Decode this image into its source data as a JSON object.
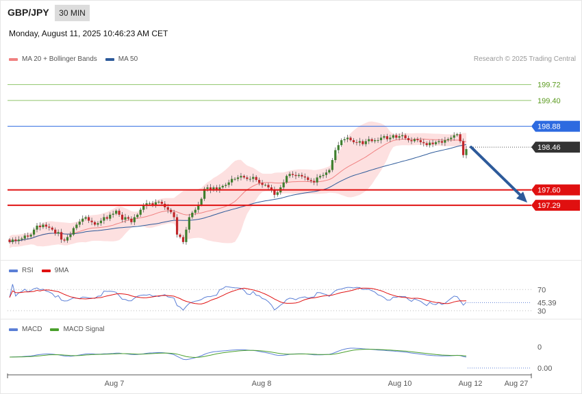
{
  "header": {
    "symbol": "GBP/JPY",
    "timeframe": "30 MIN",
    "datetime": "Monday, August 11, 2025 10:46:23 AM CET",
    "credit": "Research © 2025 Trading Central"
  },
  "legends": {
    "main": [
      {
        "label": "MA 20 + Bollinger Bands",
        "color": "#f08080"
      },
      {
        "label": "MA 50",
        "color": "#2d5a9a"
      }
    ],
    "rsi": [
      {
        "label": "RSI",
        "color": "#5b7fd6"
      },
      {
        "label": "9MA",
        "color": "#e01010"
      }
    ],
    "macd": [
      {
        "label": "MACD",
        "color": "#5b7fd6"
      },
      {
        "label": "MACD Signal",
        "color": "#4aa02c"
      }
    ]
  },
  "colors": {
    "up": "#3f7f2e",
    "down": "#c0262a",
    "band": "#fde0e0",
    "ma20": "#f08080",
    "ma50": "#2d5a9a",
    "resistance": "#8fc46a",
    "pivot": "#2d6ae0",
    "support": "#e01010",
    "current": "#333333"
  },
  "chart_data": [
    {
      "type": "candlestick",
      "title": "GBP/JPY 30 MIN",
      "ylim": [
        196.3,
        200.1
      ],
      "x_ticks": [
        "Aug 7",
        "Aug 8",
        "Aug 10",
        "Aug 12",
        "Aug 27"
      ],
      "levels": [
        {
          "value": 199.72,
          "label": "199.72",
          "kind": "resistance"
        },
        {
          "value": 199.4,
          "label": "199.40",
          "kind": "resistance"
        },
        {
          "value": 198.88,
          "label": "198.88",
          "kind": "pivot"
        },
        {
          "value": 198.46,
          "label": "198.46",
          "kind": "current"
        },
        {
          "value": 197.6,
          "label": "197.60",
          "kind": "support"
        },
        {
          "value": 197.29,
          "label": "197.29",
          "kind": "support"
        }
      ],
      "forecast": {
        "from": 198.46,
        "to": 197.29
      },
      "close": [
        196.55,
        196.6,
        196.57,
        196.6,
        196.62,
        196.68,
        196.66,
        196.7,
        196.8,
        196.88,
        196.85,
        196.9,
        196.86,
        196.84,
        196.8,
        196.72,
        196.75,
        196.6,
        196.58,
        196.65,
        196.7,
        196.83,
        196.9,
        196.96,
        197.02,
        197.05,
        196.98,
        196.95,
        196.9,
        196.93,
        196.98,
        197.05,
        197.02,
        197.1,
        197.12,
        197.18,
        197.1,
        197.0,
        197.05,
        197.02,
        196.95,
        197.05,
        197.1,
        197.2,
        197.28,
        197.33,
        197.33,
        197.3,
        197.35,
        197.36,
        197.32,
        197.25,
        197.2,
        197.15,
        197.05,
        196.7,
        196.65,
        196.55,
        196.8,
        197.05,
        197.14,
        197.2,
        197.3,
        197.42,
        197.62,
        197.65,
        197.6,
        197.65,
        197.6,
        197.65,
        197.68,
        197.7,
        197.75,
        197.82,
        197.82,
        197.85,
        197.88,
        197.85,
        197.82,
        197.82,
        197.86,
        197.8,
        197.74,
        197.7,
        197.7,
        197.65,
        197.6,
        197.5,
        197.55,
        197.65,
        197.75,
        197.88,
        197.92,
        197.9,
        197.88,
        197.9,
        197.87,
        197.85,
        197.8,
        197.78,
        197.75,
        197.85,
        197.88,
        197.9,
        197.95,
        198.0,
        198.2,
        198.4,
        198.5,
        198.6,
        198.62,
        198.65,
        198.6,
        198.56,
        198.55,
        198.58,
        198.52,
        198.58,
        198.62,
        198.58,
        198.6,
        198.6,
        198.65,
        198.68,
        198.62,
        198.65,
        198.7,
        198.65,
        198.68,
        198.7,
        198.64,
        198.6,
        198.58,
        198.62,
        198.6,
        198.56,
        198.54,
        198.5,
        198.55,
        198.52,
        198.56,
        198.58,
        198.55,
        198.6,
        198.62,
        198.65,
        198.7,
        198.72,
        198.58,
        198.3,
        198.42
      ],
      "open": [
        196.6,
        196.55,
        196.6,
        196.57,
        196.6,
        196.62,
        196.68,
        196.66,
        196.7,
        196.8,
        196.88,
        196.85,
        196.9,
        196.86,
        196.84,
        196.8,
        196.72,
        196.75,
        196.6,
        196.58,
        196.65,
        196.7,
        196.83,
        196.9,
        196.96,
        197.02,
        197.05,
        196.98,
        196.95,
        196.9,
        196.93,
        196.98,
        197.05,
        197.02,
        197.1,
        197.12,
        197.18,
        197.1,
        197.0,
        197.05,
        197.02,
        196.95,
        197.05,
        197.1,
        197.2,
        197.28,
        197.33,
        197.33,
        197.3,
        197.35,
        197.36,
        197.32,
        197.25,
        197.2,
        197.15,
        197.05,
        196.7,
        196.65,
        196.55,
        196.8,
        197.05,
        197.14,
        197.2,
        197.3,
        197.42,
        197.62,
        197.65,
        197.6,
        197.65,
        197.6,
        197.65,
        197.68,
        197.7,
        197.75,
        197.82,
        197.82,
        197.85,
        197.88,
        197.85,
        197.82,
        197.82,
        197.86,
        197.8,
        197.74,
        197.7,
        197.7,
        197.65,
        197.6,
        197.5,
        197.55,
        197.65,
        197.75,
        197.88,
        197.92,
        197.9,
        197.88,
        197.9,
        197.87,
        197.85,
        197.8,
        197.78,
        197.75,
        197.85,
        197.88,
        197.9,
        197.95,
        198.0,
        198.2,
        198.4,
        198.5,
        198.6,
        198.62,
        198.65,
        198.6,
        198.56,
        198.55,
        198.58,
        198.52,
        198.58,
        198.62,
        198.58,
        198.6,
        198.6,
        198.65,
        198.68,
        198.62,
        198.65,
        198.7,
        198.65,
        198.68,
        198.7,
        198.64,
        198.6,
        198.58,
        198.62,
        198.6,
        198.56,
        198.54,
        198.5,
        198.55,
        198.52,
        198.56,
        198.58,
        198.55,
        198.6,
        198.62,
        198.65,
        198.7,
        198.72,
        198.58,
        198.3
      ]
    },
    {
      "type": "line",
      "series": [
        {
          "name": "RSI"
        },
        {
          "name": "9MA"
        }
      ],
      "y_ticks": [
        70,
        30
      ],
      "current": 45.39,
      "current_label": "45.39",
      "ylim": [
        20,
        100
      ]
    },
    {
      "type": "line",
      "series": [
        {
          "name": "MACD"
        },
        {
          "name": "MACD Signal"
        }
      ],
      "y_ticks": [
        0
      ],
      "current": 0.0,
      "current_label": "0.00"
    }
  ]
}
